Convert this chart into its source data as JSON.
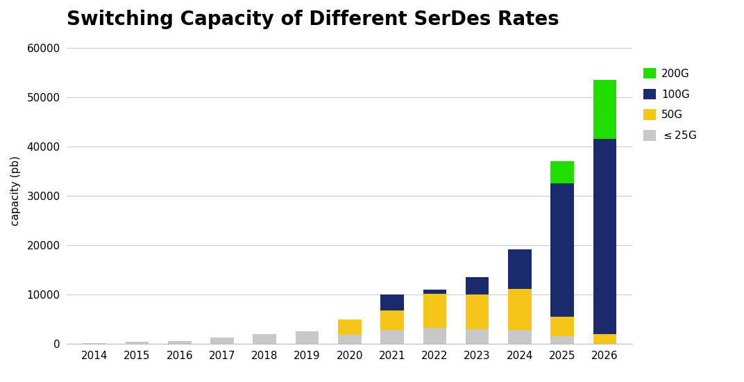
{
  "title": "Switching Capacity of Different SerDes Rates",
  "ylabel": "capacity (pb)",
  "years": [
    2014,
    2015,
    2016,
    2017,
    2018,
    2019,
    2020,
    2021,
    2022,
    2023,
    2024,
    2025,
    2026
  ],
  "le25G": [
    100,
    400,
    600,
    1200,
    2000,
    2600,
    1800,
    2800,
    3200,
    3000,
    2800,
    1500,
    0
  ],
  "50G": [
    0,
    0,
    0,
    0,
    0,
    0,
    3200,
    4000,
    7000,
    7000,
    8400,
    4000,
    2000
  ],
  "100G": [
    0,
    0,
    0,
    0,
    0,
    0,
    0,
    3200,
    800,
    3500,
    8000,
    27000,
    39500
  ],
  "200G": [
    0,
    0,
    0,
    0,
    0,
    0,
    0,
    0,
    0,
    0,
    0,
    4500,
    12000
  ],
  "colors": {
    "le25G": "#c8c8c8",
    "50G": "#f5c518",
    "100G": "#1a2b6d",
    "200G": "#22dd00"
  },
  "ylim": [
    0,
    62000
  ],
  "yticks": [
    0,
    10000,
    20000,
    30000,
    40000,
    50000,
    60000
  ],
  "background_color": "#ffffff",
  "grid_color": "#cccccc",
  "title_fontsize": 20,
  "axis_fontsize": 11,
  "bar_width": 0.55
}
